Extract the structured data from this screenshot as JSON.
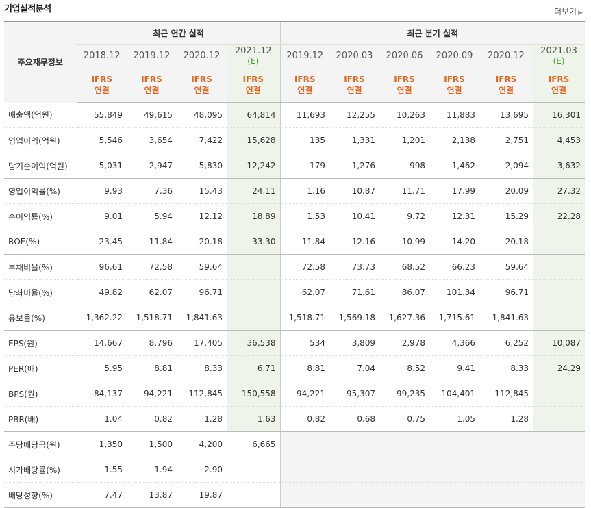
{
  "header": {
    "title": "기업실적분석",
    "more_label": "더보기"
  },
  "table": {
    "corner_label": "주요재무정보",
    "group_annual": "최근 연간 실적",
    "group_quarter": "최근 분기 실적",
    "periods": [
      "2018.12",
      "2019.12",
      "2020.12",
      "2021.12",
      "2019.12",
      "2020.03",
      "2020.06",
      "2020.09",
      "2020.12",
      "2021.03"
    ],
    "estimate_mark": "(E)",
    "ifrs_line1": "IFRS",
    "ifrs_line2": "연결",
    "rows": [
      {
        "label": "매출액(억원)",
        "values": [
          "55,849",
          "49,615",
          "48,095",
          "64,814",
          "11,693",
          "12,255",
          "10,263",
          "11,883",
          "13,695",
          "16,301"
        ]
      },
      {
        "label": "영업이익(억원)",
        "values": [
          "5,546",
          "3,654",
          "7,422",
          "15,628",
          "135",
          "1,331",
          "1,201",
          "2,138",
          "2,751",
          "4,453"
        ]
      },
      {
        "label": "당기순이익(억원)",
        "values": [
          "5,031",
          "2,947",
          "5,830",
          "12,242",
          "179",
          "1,276",
          "998",
          "1,462",
          "2,094",
          "3,632"
        ]
      },
      {
        "label": "영업이익률(%)",
        "values": [
          "9.93",
          "7.36",
          "15.43",
          "24.11",
          "1.16",
          "10.87",
          "11.71",
          "17.99",
          "20.09",
          "27.32"
        ]
      },
      {
        "label": "순이익률(%)",
        "values": [
          "9.01",
          "5.94",
          "12.12",
          "18.89",
          "1.53",
          "10.41",
          "9.72",
          "12.31",
          "15.29",
          "22.28"
        ]
      },
      {
        "label": "ROE(%)",
        "values": [
          "23.45",
          "11.84",
          "20.18",
          "33.30",
          "11.84",
          "12.16",
          "10.99",
          "14.20",
          "20.18",
          ""
        ]
      },
      {
        "label": "부채비율(%)",
        "values": [
          "96.61",
          "72.58",
          "59.64",
          "",
          "72.58",
          "73.73",
          "68.52",
          "66.23",
          "59.64",
          ""
        ]
      },
      {
        "label": "당좌비율(%)",
        "values": [
          "49.82",
          "62.07",
          "96.71",
          "",
          "62.07",
          "71.61",
          "86.07",
          "101.34",
          "96.71",
          ""
        ]
      },
      {
        "label": "유보율(%)",
        "values": [
          "1,362.22",
          "1,518.71",
          "1,841.63",
          "",
          "1,518.71",
          "1,569.18",
          "1,627.36",
          "1,715.61",
          "1,841.63",
          ""
        ]
      },
      {
        "label": "EPS(원)",
        "values": [
          "14,667",
          "8,796",
          "17,405",
          "36,538",
          "534",
          "3,809",
          "2,978",
          "4,366",
          "6,252",
          "10,087"
        ]
      },
      {
        "label": "PER(배)",
        "values": [
          "5.95",
          "8.81",
          "8.33",
          "6.71",
          "8.81",
          "7.04",
          "8.52",
          "9.41",
          "8.33",
          "24.29"
        ]
      },
      {
        "label": "BPS(원)",
        "values": [
          "84,137",
          "94,221",
          "112,845",
          "150,558",
          "94,221",
          "95,307",
          "99,235",
          "104,401",
          "112,845",
          ""
        ]
      },
      {
        "label": "PBR(배)",
        "values": [
          "1.04",
          "0.82",
          "1.28",
          "1.63",
          "0.82",
          "0.68",
          "0.75",
          "1.05",
          "1.28",
          ""
        ]
      },
      {
        "label": "주당배당금(원)",
        "values": [
          "1,350",
          "1,500",
          "4,200",
          "6,665",
          "",
          "",
          "",
          "",
          "",
          ""
        ]
      },
      {
        "label": "시가배당률(%)",
        "values": [
          "1.55",
          "1.94",
          "2.90",
          "",
          "",
          "",
          "",
          "",
          "",
          ""
        ]
      },
      {
        "label": "배당성향(%)",
        "values": [
          "7.47",
          "13.87",
          "19.87",
          "",
          "",
          "",
          "",
          "",
          "",
          ""
        ]
      }
    ]
  }
}
